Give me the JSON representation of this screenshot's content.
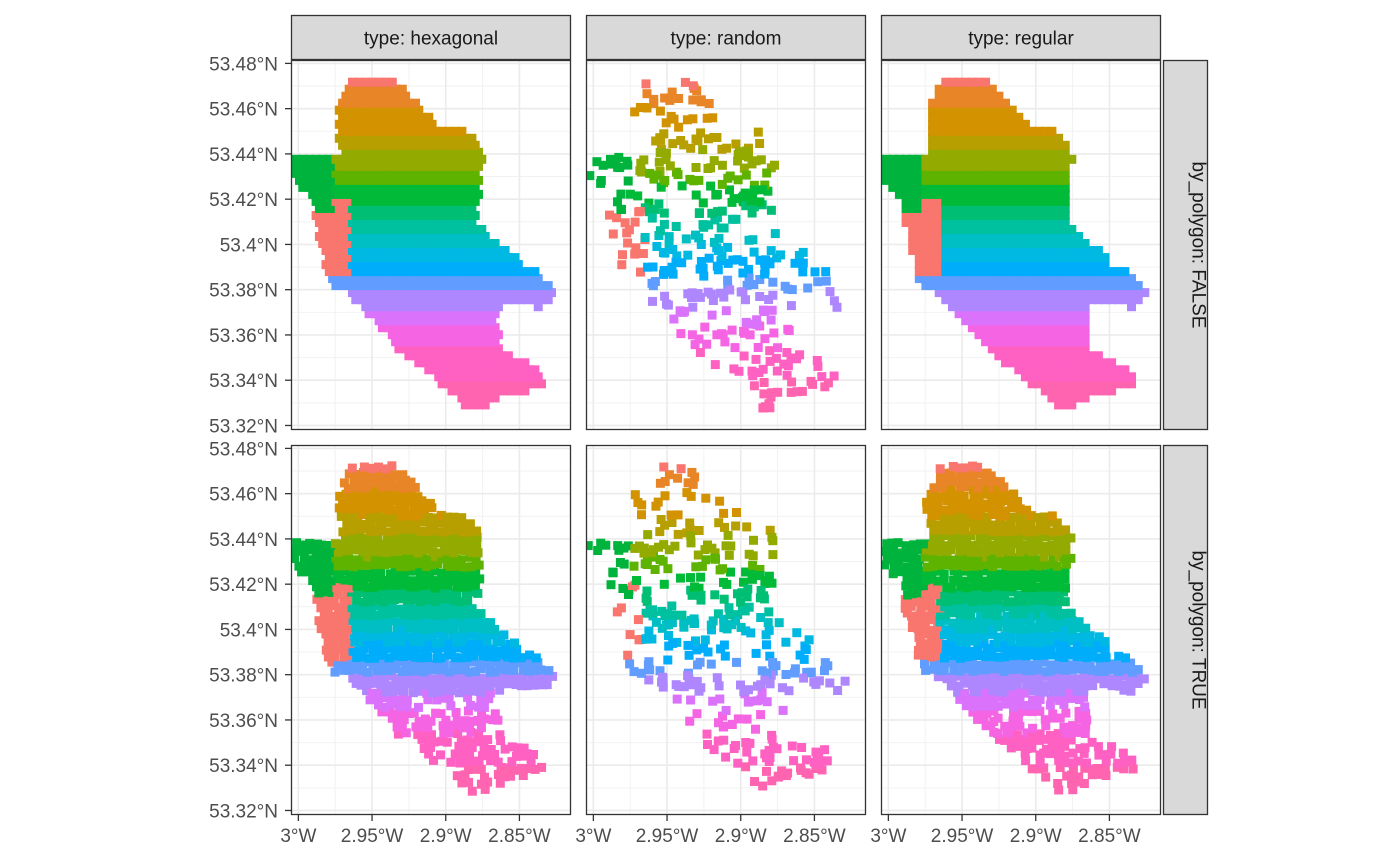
{
  "chart_data": {
    "type": "scatter",
    "facet_columns": [
      "type: hexagonal",
      "type: random",
      "type: regular"
    ],
    "facet_rows": [
      "by_polygon: FALSE",
      "by_polygon: TRUE"
    ],
    "x_ticks": [
      {
        "value": -3.0,
        "label": "3°W"
      },
      {
        "value": -2.95,
        "label": "2.95°W"
      },
      {
        "value": -2.9,
        "label": "2.9°W"
      },
      {
        "value": -2.85,
        "label": "2.85°W"
      }
    ],
    "y_ticks": [
      {
        "value": 53.32,
        "label": "53.32°N"
      },
      {
        "value": 53.34,
        "label": "53.34°N"
      },
      {
        "value": 53.36,
        "label": "53.36°N"
      },
      {
        "value": 53.38,
        "label": "53.38°N"
      },
      {
        "value": 53.4,
        "label": "53.4°N"
      },
      {
        "value": 53.42,
        "label": "53.42°N"
      },
      {
        "value": 53.44,
        "label": "53.44°N"
      },
      {
        "value": 53.46,
        "label": "53.46°N"
      },
      {
        "value": 53.48,
        "label": "53.48°N"
      }
    ],
    "xlim": [
      -3.005,
      -2.815
    ],
    "ylim": [
      53.318,
      53.4815
    ],
    "grid": true,
    "legend": "none",
    "region_outline": [
      [
        -2.965,
        53.472
      ],
      [
        -2.935,
        53.473
      ],
      [
        -2.915,
        53.46
      ],
      [
        -2.905,
        53.452
      ],
      [
        -2.885,
        53.45
      ],
      [
        -2.875,
        53.44
      ],
      [
        -2.877,
        53.42
      ],
      [
        -2.88,
        53.41
      ],
      [
        -2.865,
        53.4
      ],
      [
        -2.85,
        53.395
      ],
      [
        -2.85,
        53.388
      ],
      [
        -2.84,
        53.39
      ],
      [
        -2.825,
        53.378
      ],
      [
        -2.835,
        53.372
      ],
      [
        -2.86,
        53.376
      ],
      [
        -2.865,
        53.37
      ],
      [
        -2.863,
        53.352
      ],
      [
        -2.85,
        53.35
      ],
      [
        -2.835,
        53.344
      ],
      [
        -2.833,
        53.337
      ],
      [
        -2.86,
        53.333
      ],
      [
        -2.875,
        53.328
      ],
      [
        -2.885,
        53.327
      ],
      [
        -2.89,
        53.332
      ],
      [
        -2.93,
        53.352
      ],
      [
        -2.95,
        53.368
      ],
      [
        -2.965,
        53.378
      ],
      [
        -2.978,
        53.382
      ],
      [
        -2.985,
        53.4
      ],
      [
        -2.99,
        53.412
      ],
      [
        -2.99,
        53.42
      ],
      [
        -3.0,
        53.425
      ],
      [
        -3.005,
        53.432
      ],
      [
        -3.003,
        53.44
      ],
      [
        -2.97,
        53.44
      ],
      [
        -2.975,
        53.455
      ]
    ],
    "lat_bands": [
      {
        "lat": 53.47,
        "color": "#F8766D"
      },
      {
        "lat": 53.462,
        "color": "#E88526"
      },
      {
        "lat": 53.45,
        "color": "#D39200"
      },
      {
        "lat": 53.442,
        "color": "#B79F00"
      },
      {
        "lat": 53.432,
        "color": "#93AA00"
      },
      {
        "lat": 53.426,
        "color": "#5EB300"
      },
      {
        "lat": 53.418,
        "color": "#00BA38"
      },
      {
        "lat": 53.412,
        "color": "#00BF74"
      },
      {
        "lat": 53.406,
        "color": "#00C19F"
      },
      {
        "lat": 53.4,
        "color": "#00BFC4"
      },
      {
        "lat": 53.394,
        "color": "#00B9E3"
      },
      {
        "lat": 53.386,
        "color": "#00ADFA"
      },
      {
        "lat": 53.38,
        "color": "#619CFF"
      },
      {
        "lat": 53.372,
        "color": "#AE87FF"
      },
      {
        "lat": 53.364,
        "color": "#DB72FB"
      },
      {
        "lat": 53.354,
        "color": "#F564E3"
      },
      {
        "lat": 53.34,
        "color": "#FF61C3"
      },
      {
        "lat": 53.32,
        "color": "#FF64B0"
      }
    ],
    "west_lobe_color": "#00B33C",
    "southwest_lobe_color": "#F8766D"
  }
}
